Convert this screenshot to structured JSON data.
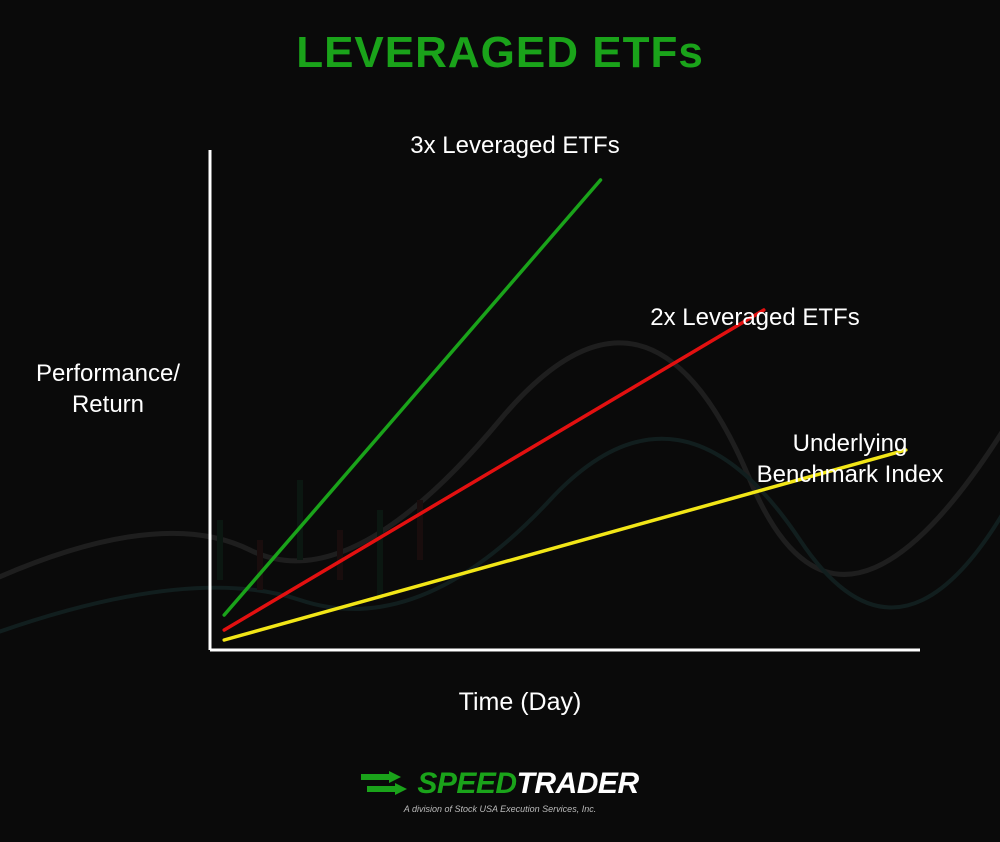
{
  "title": {
    "text": "LEVERAGED ETFs",
    "color": "#1aa31a",
    "fontsize": 44
  },
  "chart": {
    "type": "line",
    "background_color": "#0a0a0a",
    "axis_color": "#ffffff",
    "axis_width": 3,
    "xlim": [
      0,
      1
    ],
    "ylim": [
      0,
      1
    ],
    "xlabel": "Time (Day)",
    "ylabel_line1": "Performance/",
    "ylabel_line2": "Return",
    "label_fontsize": 24,
    "label_color": "#ffffff",
    "series": [
      {
        "name": "3x Leveraged ETFs",
        "color": "#1aa31a",
        "line_width": 3.5,
        "points": [
          [
            0.02,
            0.07
          ],
          [
            0.55,
            0.94
          ]
        ]
      },
      {
        "name": "2x Leveraged ETFs",
        "color": "#e31010",
        "line_width": 3.5,
        "points": [
          [
            0.02,
            0.04
          ],
          [
            0.78,
            0.68
          ]
        ]
      },
      {
        "name": "Underlying\nBenchmark Index",
        "color": "#f2e617",
        "line_width": 3.5,
        "points": [
          [
            0.02,
            0.02
          ],
          [
            0.98,
            0.4
          ]
        ]
      }
    ]
  },
  "logo": {
    "arrow_color": "#1aa31a",
    "brand_part1": "SPEED",
    "brand_part1_color": "#1aa31a",
    "brand_part2": "TRADER",
    "brand_part2_color": "#ffffff",
    "sub": "A division of Stock USA Execution Services, Inc."
  }
}
